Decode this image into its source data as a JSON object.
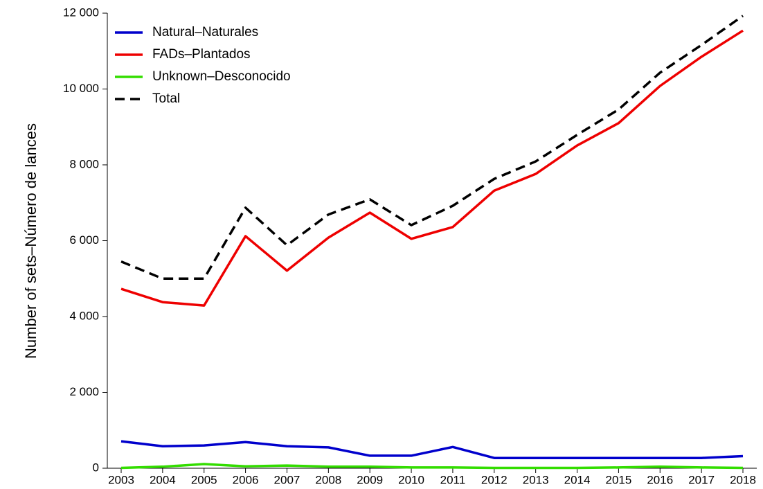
{
  "chart_data": {
    "type": "line",
    "y_label": "Number of sets–Número de lances",
    "categories": [
      "2003",
      "2004",
      "2005",
      "2006",
      "2007",
      "2008",
      "2009",
      "2010",
      "2011",
      "2012",
      "2013",
      "2014",
      "2015",
      "2016",
      "2017",
      "2018"
    ],
    "series": [
      {
        "name": "Natural–Naturales",
        "color": "#0000cc",
        "dash": false,
        "values": [
          710,
          580,
          600,
          690,
          580,
          550,
          330,
          330,
          560,
          270,
          270,
          270,
          270,
          270,
          270,
          320
        ]
      },
      {
        "name": "FADs–Plantados",
        "color": "#ee0000",
        "dash": false,
        "values": [
          4730,
          4380,
          4290,
          6120,
          5210,
          6080,
          6740,
          6050,
          6360,
          7320,
          7760,
          8510,
          9100,
          10080,
          10850,
          11540
        ]
      },
      {
        "name": "Unknown–Desconocido",
        "color": "#33dd00",
        "dash": false,
        "values": [
          10,
          40,
          110,
          50,
          70,
          40,
          40,
          20,
          20,
          10,
          10,
          10,
          20,
          40,
          20,
          10
        ]
      },
      {
        "name": "Total",
        "color": "#000000",
        "dash": true,
        "values": [
          5450,
          5000,
          5000,
          6870,
          5880,
          6690,
          7090,
          6410,
          6920,
          7630,
          8090,
          8790,
          9460,
          10430,
          11160,
          11930
        ]
      }
    ],
    "ylim": [
      0,
      12000
    ],
    "yticks": [
      {
        "value": 0,
        "label": "0"
      },
      {
        "value": 2000,
        "label": "2 000"
      },
      {
        "value": 4000,
        "label": "4 000"
      },
      {
        "value": 6000,
        "label": "6 000"
      },
      {
        "value": 8000,
        "label": "8 000"
      },
      {
        "value": 10000,
        "label": "10 000"
      },
      {
        "value": 12000,
        "label": "12 000"
      }
    ],
    "legend": "top-left",
    "grid": false
  }
}
